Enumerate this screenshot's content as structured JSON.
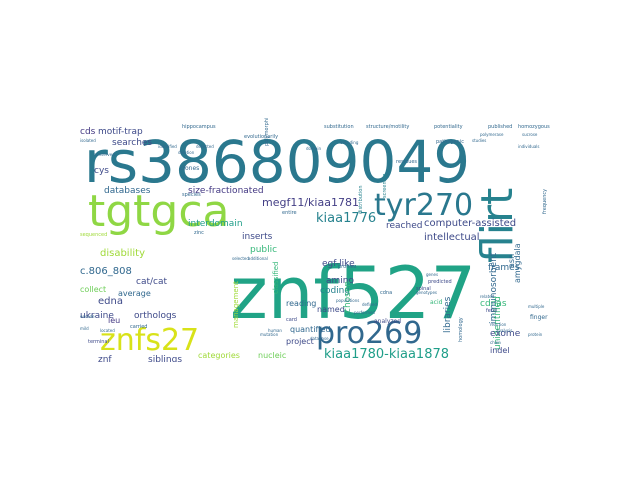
{
  "word_cloud": {
    "colors": {
      "dark_purple": "#44015a",
      "indigo": "#3e4a89",
      "steel_blue": "#31688e",
      "teal_blue": "#26828e",
      "teal": "#1f9e89",
      "green": "#35b779",
      "lime": "#8fd744",
      "yellow": "#d8e219"
    },
    "words": [
      {
        "text": "rs386809049",
        "color": "#2a788e"
      },
      {
        "text": "znf527",
        "color": "#20a386"
      },
      {
        "text": "tgtgca",
        "color": "#8fd744"
      },
      {
        "text": "tyr270",
        "color": "#2a788e"
      },
      {
        "text": "flirt",
        "color": "#26828e"
      },
      {
        "text": "pro269",
        "color": "#31688e"
      },
      {
        "text": "znfs27",
        "color": "#d8e219"
      },
      {
        "text": "kiaa1780-kiaa1878",
        "color": "#1f9e89"
      },
      {
        "text": "kiaa1776",
        "color": "#26828e"
      },
      {
        "text": "megf11/kiaa1781",
        "color": "#433e85"
      },
      {
        "text": "motif-trap",
        "color": "#3e4a89"
      },
      {
        "text": "searches",
        "color": "#3e4a89"
      },
      {
        "text": "cds",
        "color": "#443983"
      },
      {
        "text": "cys",
        "color": "#3e4a89"
      },
      {
        "text": "size-fractionated",
        "color": "#443983"
      },
      {
        "text": "databases",
        "color": "#31688e"
      },
      {
        "text": "interdomain",
        "color": "#1f9e89"
      },
      {
        "text": "disability",
        "color": "#a0da39"
      },
      {
        "text": "c.806_808",
        "color": "#31688e"
      },
      {
        "text": "cat/cat",
        "color": "#3e4a89"
      },
      {
        "text": "edna",
        "color": "#3e4a89"
      },
      {
        "text": "ukraine",
        "color": "#3e4a89"
      },
      {
        "text": "orthologs",
        "color": "#3e4a89"
      },
      {
        "text": "collect",
        "color": "#6ece58"
      },
      {
        "text": "average",
        "color": "#31688e"
      },
      {
        "text": "leu",
        "color": "#443983"
      },
      {
        "text": "znf",
        "color": "#3e4a89"
      },
      {
        "text": "siblings",
        "color": "#3e4a89"
      },
      {
        "text": "categories",
        "color": "#a0da39"
      },
      {
        "text": "nucleic",
        "color": "#6ece58"
      },
      {
        "text": "project",
        "color": "#3e4a89"
      },
      {
        "text": "quantified",
        "color": "#31688e"
      },
      {
        "text": "reading",
        "color": "#31688e"
      },
      {
        "text": "public",
        "color": "#35b779"
      },
      {
        "text": "inserts",
        "color": "#3e4a89"
      },
      {
        "text": "coding",
        "color": "#26828e"
      },
      {
        "text": "named",
        "color": "#3e4a89"
      },
      {
        "text": "egf-like",
        "color": "#3e4a89"
      },
      {
        "text": "amino",
        "color": "#3e4a89"
      },
      {
        "text": "chosen",
        "color": "#35b779"
      },
      {
        "text": "reached",
        "color": "#3e4a89"
      },
      {
        "text": "computer-assisted",
        "color": "#3e4a89"
      },
      {
        "text": "intellectual",
        "color": "#3e4a89"
      },
      {
        "text": "libraries",
        "color": "#31688e"
      },
      {
        "text": "frames",
        "color": "#31688e"
      },
      {
        "text": "cdnas",
        "color": "#35b779"
      },
      {
        "text": "immunosorbent",
        "color": "#31688e"
      },
      {
        "text": "unidentified",
        "color": "#35b779"
      },
      {
        "text": "amygdala",
        "color": "#31688e"
      },
      {
        "text": "asn",
        "color": "#31688e"
      },
      {
        "text": "exome",
        "color": "#3e4a89"
      },
      {
        "text": "indel",
        "color": "#3e4a89"
      },
      {
        "text": "hippocampus",
        "color": "#31688e"
      },
      {
        "text": "evolutionarily",
        "color": "#31688e"
      },
      {
        "text": "substitution",
        "color": "#31688e"
      },
      {
        "text": "structure/motility",
        "color": "#31688e"
      },
      {
        "text": "potentiality",
        "color": "#31688e"
      },
      {
        "text": "published",
        "color": "#31688e"
      },
      {
        "text": "homozygous",
        "color": "#31688e"
      },
      {
        "text": "distribution",
        "color": "#26828e"
      },
      {
        "text": "screening",
        "color": "#26828e"
      },
      {
        "text": "clones",
        "color": "#31688e"
      },
      {
        "text": "residues",
        "color": "#31688e"
      },
      {
        "text": "frequency",
        "color": "#31688e"
      },
      {
        "text": "entire",
        "color": "#31688e"
      },
      {
        "text": "classified",
        "color": "#35b779"
      },
      {
        "text": "management",
        "color": "#a0da39"
      },
      {
        "text": "profiles",
        "color": "#31688e"
      },
      {
        "text": "analyzed",
        "color": "#3e4a89"
      },
      {
        "text": "predicted",
        "color": "#3e4a89"
      },
      {
        "text": "cdna",
        "color": "#31688e"
      },
      {
        "text": "acid",
        "color": "#35b779"
      },
      {
        "text": "fetal",
        "color": "#3e4a89"
      },
      {
        "text": "finger",
        "color": "#31688e"
      },
      {
        "text": "homology",
        "color": "#31688e"
      },
      {
        "text": "species",
        "color": "#31688e"
      },
      {
        "text": "zinc",
        "color": "#31688e"
      },
      {
        "text": "sequenced",
        "color": "#a0da39"
      },
      {
        "text": "carried",
        "color": "#31688e"
      },
      {
        "text": "terminal",
        "color": "#3e4a89"
      },
      {
        "text": "spinal",
        "color": "#3e4a89"
      },
      {
        "text": "card",
        "color": "#3e4a89"
      },
      {
        "text": "polymorphic",
        "color": "#31688e"
      },
      {
        "text": "pathogenic",
        "color": "#31688e"
      },
      {
        "text": "signaling/communication",
        "color": "#31688e"
      },
      {
        "text": "identified",
        "color": "#31688e"
      },
      {
        "text": "encoding",
        "color": "#31688e"
      },
      {
        "text": "detected",
        "color": "#31688e"
      },
      {
        "text": "sucrose",
        "color": "#31688e"
      },
      {
        "text": "isolated",
        "color": "#31688e"
      },
      {
        "text": "deletion",
        "color": "#31688e"
      },
      {
        "text": "domain",
        "color": "#31688e"
      },
      {
        "text": "related",
        "color": "#31688e"
      },
      {
        "text": "mild",
        "color": "#31688e"
      },
      {
        "text": "studies",
        "color": "#31688e"
      },
      {
        "text": "additional",
        "color": "#31688e"
      },
      {
        "text": "genes",
        "color": "#31688e"
      },
      {
        "text": "encode",
        "color": "#31688e"
      },
      {
        "text": "mutation",
        "color": "#31688e"
      },
      {
        "text": "located",
        "color": "#31688e"
      },
      {
        "text": "individuals",
        "color": "#31688e"
      },
      {
        "text": "polymerase",
        "color": "#31688e"
      },
      {
        "text": "analysis",
        "color": "#31688e"
      },
      {
        "text": "chain",
        "color": "#31688e"
      },
      {
        "text": "reaction",
        "color": "#31688e"
      },
      {
        "text": "multiple",
        "color": "#31688e"
      },
      {
        "text": "populations",
        "color": "#31688e"
      },
      {
        "text": "protein",
        "color": "#31688e"
      },
      {
        "text": "genotypes",
        "color": "#31688e"
      },
      {
        "text": "performed",
        "color": "#31688e"
      },
      {
        "text": "conserved",
        "color": "#31688e"
      },
      {
        "text": "defined",
        "color": "#31688e"
      },
      {
        "text": "selected",
        "color": "#31688e"
      },
      {
        "text": "database",
        "color": "#31688e"
      },
      {
        "text": "human",
        "color": "#31688e"
      }
    ]
  }
}
